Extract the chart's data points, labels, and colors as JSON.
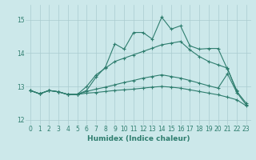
{
  "title": "",
  "xlabel": "Humidex (Indice chaleur)",
  "ylabel": "",
  "background_color": "#cce8ea",
  "grid_color": "#aacccf",
  "line_color": "#2e7d6e",
  "xlim": [
    -0.5,
    23.5
  ],
  "ylim": [
    11.85,
    15.45
  ],
  "yticks": [
    12,
    13,
    14,
    15
  ],
  "xticks": [
    0,
    1,
    2,
    3,
    4,
    5,
    6,
    7,
    8,
    9,
    10,
    11,
    12,
    13,
    14,
    15,
    16,
    17,
    18,
    19,
    20,
    21,
    22,
    23
  ],
  "line1_x": [
    0,
    1,
    2,
    3,
    4,
    5,
    6,
    7,
    8,
    9,
    10,
    11,
    12,
    13,
    14,
    15,
    16,
    17,
    18,
    19,
    20,
    21,
    22
  ],
  "line1_y": [
    12.88,
    12.78,
    12.88,
    12.84,
    12.76,
    12.76,
    12.88,
    13.28,
    13.58,
    14.28,
    14.12,
    14.62,
    14.62,
    14.42,
    15.08,
    14.72,
    14.82,
    14.22,
    14.12,
    14.14,
    14.14,
    13.52,
    12.88
  ],
  "line2_x": [
    0,
    1,
    2,
    3,
    4,
    5,
    6,
    7,
    8,
    9,
    10,
    11,
    12,
    13,
    14,
    15,
    16,
    17,
    18,
    19,
    20,
    21,
    22,
    23
  ],
  "line2_y": [
    12.88,
    12.78,
    12.88,
    12.84,
    12.76,
    12.76,
    13.0,
    13.35,
    13.55,
    13.75,
    13.85,
    13.95,
    14.05,
    14.15,
    14.25,
    14.3,
    14.35,
    14.1,
    13.9,
    13.75,
    13.65,
    13.55,
    12.85,
    12.5
  ],
  "line3_x": [
    0,
    1,
    2,
    3,
    4,
    5,
    6,
    7,
    8,
    9,
    10,
    11,
    12,
    13,
    14,
    15,
    16,
    17,
    18,
    19,
    20,
    21,
    22,
    23
  ],
  "line3_y": [
    12.88,
    12.78,
    12.88,
    12.84,
    12.76,
    12.76,
    12.85,
    12.92,
    12.98,
    13.05,
    13.12,
    13.18,
    13.25,
    13.3,
    13.35,
    13.3,
    13.25,
    13.18,
    13.1,
    13.02,
    12.95,
    13.38,
    12.82,
    12.45
  ],
  "line4_x": [
    0,
    1,
    2,
    3,
    4,
    5,
    6,
    7,
    8,
    9,
    10,
    11,
    12,
    13,
    14,
    15,
    16,
    17,
    18,
    19,
    20,
    21,
    22,
    23
  ],
  "line4_y": [
    12.88,
    12.78,
    12.88,
    12.84,
    12.76,
    12.76,
    12.8,
    12.82,
    12.85,
    12.88,
    12.9,
    12.92,
    12.95,
    12.98,
    13.0,
    12.98,
    12.95,
    12.9,
    12.85,
    12.8,
    12.75,
    12.68,
    12.6,
    12.42
  ]
}
